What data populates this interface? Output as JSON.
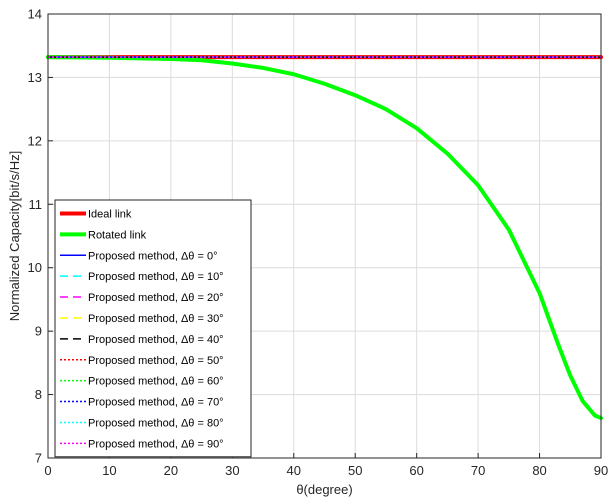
{
  "chart_data": {
    "type": "line",
    "title": "",
    "xlabel": "θ(degree)",
    "ylabel": "Normalized Capacity[bit/s/Hz]",
    "xlim": [
      0,
      90
    ],
    "ylim": [
      7,
      14
    ],
    "x_ticks": [
      "0",
      "10",
      "20",
      "30",
      "40",
      "50",
      "60",
      "70",
      "80",
      "90"
    ],
    "y_ticks": [
      "7",
      "8",
      "9",
      "10",
      "11",
      "12",
      "13",
      "14"
    ],
    "grid": true,
    "legend_position": "bottom-left",
    "x": [
      0,
      10,
      20,
      25,
      30,
      35,
      40,
      45,
      50,
      55,
      60,
      65,
      70,
      75,
      80,
      83,
      85,
      87,
      89,
      90
    ],
    "series": [
      {
        "name": "Ideal link",
        "color": "#ff0000",
        "style": "solid",
        "width": 4,
        "values": [
          13.32,
          13.32,
          13.32,
          13.32,
          13.32,
          13.32,
          13.32,
          13.32,
          13.32,
          13.32,
          13.32,
          13.32,
          13.32,
          13.32,
          13.32,
          13.32,
          13.32,
          13.32,
          13.32,
          13.32
        ]
      },
      {
        "name": "Rotated link",
        "color": "#00ff00",
        "style": "solid",
        "width": 4,
        "values": [
          13.32,
          13.31,
          13.29,
          13.27,
          13.22,
          13.15,
          13.05,
          12.9,
          12.72,
          12.5,
          12.2,
          11.8,
          11.3,
          10.6,
          9.6,
          8.8,
          8.3,
          7.9,
          7.67,
          7.63
        ]
      },
      {
        "name": "Proposed method, Δθ = 0°",
        "color": "#0000ff",
        "style": "solid",
        "width": 1.5,
        "values": [
          13.32,
          13.32,
          13.32,
          13.32,
          13.32,
          13.32,
          13.32,
          13.32,
          13.32,
          13.32,
          13.32,
          13.32,
          13.32,
          13.32,
          13.32,
          13.32,
          13.32,
          13.32,
          13.32,
          13.32
        ]
      },
      {
        "name": "Proposed method, Δθ = 10°",
        "color": "#00ffff",
        "style": "dashed",
        "width": 1.5,
        "values": [
          13.32,
          13.32,
          13.32,
          13.32,
          13.32,
          13.32,
          13.32,
          13.32,
          13.32,
          13.32,
          13.32,
          13.32,
          13.32,
          13.32,
          13.32,
          13.32,
          13.32,
          13.32,
          13.32,
          13.32
        ]
      },
      {
        "name": "Proposed method, Δθ = 20°",
        "color": "#ff00ff",
        "style": "dashed",
        "width": 1.5,
        "values": [
          13.32,
          13.32,
          13.32,
          13.32,
          13.32,
          13.32,
          13.32,
          13.32,
          13.32,
          13.32,
          13.32,
          13.32,
          13.32,
          13.32,
          13.32,
          13.32,
          13.32,
          13.32,
          13.32,
          13.32
        ]
      },
      {
        "name": "Proposed method, Δθ = 30°",
        "color": "#ffff00",
        "style": "dashed",
        "width": 1.5,
        "values": [
          13.32,
          13.32,
          13.32,
          13.32,
          13.32,
          13.32,
          13.32,
          13.32,
          13.32,
          13.32,
          13.32,
          13.32,
          13.32,
          13.32,
          13.32,
          13.32,
          13.32,
          13.32,
          13.32,
          13.32
        ]
      },
      {
        "name": "Proposed method, Δθ = 40°",
        "color": "#000000",
        "style": "dashed",
        "width": 1.5,
        "values": [
          13.32,
          13.32,
          13.32,
          13.32,
          13.32,
          13.32,
          13.32,
          13.32,
          13.32,
          13.32,
          13.32,
          13.32,
          13.32,
          13.32,
          13.32,
          13.32,
          13.32,
          13.32,
          13.32,
          13.32
        ]
      },
      {
        "name": "Proposed method, Δθ = 50°",
        "color": "#ff0000",
        "style": "dotted",
        "width": 1.5,
        "values": [
          13.32,
          13.32,
          13.32,
          13.32,
          13.32,
          13.32,
          13.32,
          13.32,
          13.32,
          13.32,
          13.32,
          13.32,
          13.32,
          13.32,
          13.32,
          13.32,
          13.32,
          13.32,
          13.32,
          13.32
        ]
      },
      {
        "name": "Proposed method, Δθ = 60°",
        "color": "#00ff00",
        "style": "dotted",
        "width": 1.5,
        "values": [
          13.32,
          13.32,
          13.32,
          13.32,
          13.32,
          13.32,
          13.32,
          13.32,
          13.32,
          13.32,
          13.32,
          13.32,
          13.32,
          13.32,
          13.32,
          13.32,
          13.32,
          13.32,
          13.32,
          13.32
        ]
      },
      {
        "name": "Proposed method, Δθ = 70°",
        "color": "#0000ff",
        "style": "dotted",
        "width": 1.5,
        "values": [
          13.32,
          13.32,
          13.32,
          13.32,
          13.32,
          13.32,
          13.32,
          13.32,
          13.32,
          13.32,
          13.32,
          13.32,
          13.32,
          13.32,
          13.32,
          13.32,
          13.32,
          13.32,
          13.32,
          13.32
        ]
      },
      {
        "name": "Proposed method, Δθ = 80°",
        "color": "#00ffff",
        "style": "dotted",
        "width": 1.5,
        "values": [
          13.32,
          13.32,
          13.32,
          13.32,
          13.32,
          13.32,
          13.32,
          13.32,
          13.32,
          13.32,
          13.32,
          13.32,
          13.32,
          13.32,
          13.32,
          13.32,
          13.32,
          13.32,
          13.32,
          13.32
        ]
      },
      {
        "name": "Proposed method, Δθ = 90°",
        "color": "#ff00ff",
        "style": "dotted",
        "width": 1.5,
        "values": [
          13.32,
          13.32,
          13.32,
          13.32,
          13.32,
          13.32,
          13.32,
          13.32,
          13.32,
          13.32,
          13.32,
          13.32,
          13.32,
          13.32,
          13.32,
          13.32,
          13.32,
          13.32,
          13.32,
          13.32
        ]
      }
    ]
  }
}
